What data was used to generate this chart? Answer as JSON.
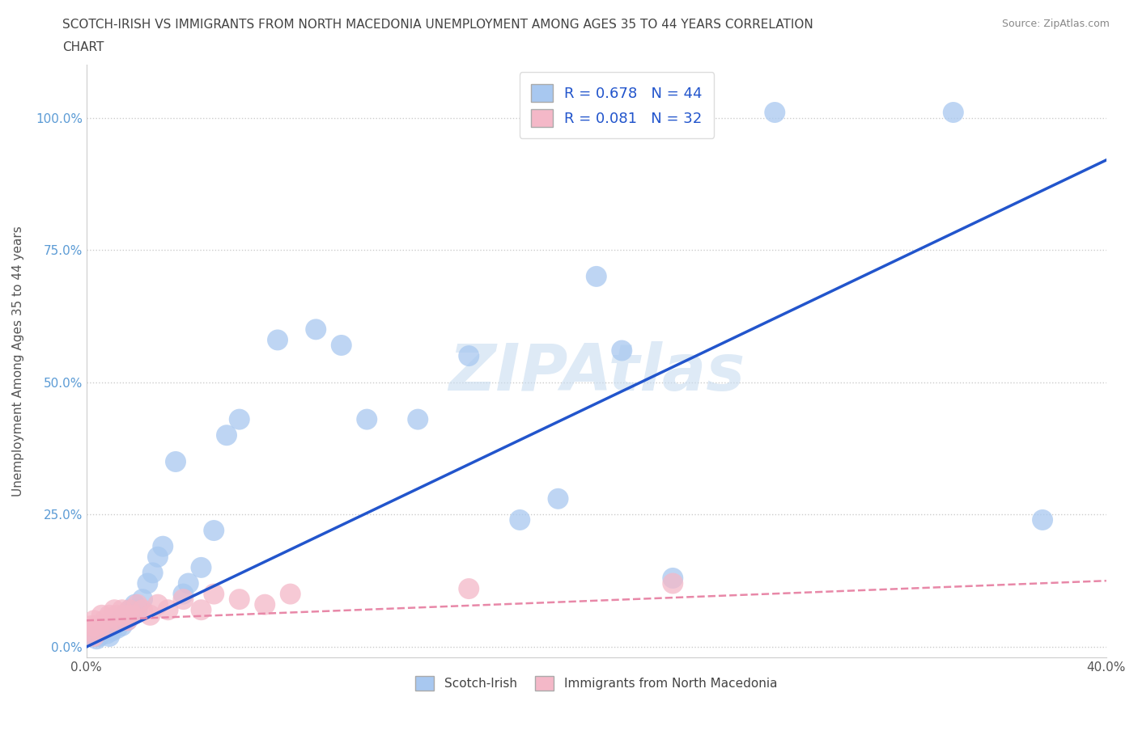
{
  "title_line1": "SCOTCH-IRISH VS IMMIGRANTS FROM NORTH MACEDONIA UNEMPLOYMENT AMONG AGES 35 TO 44 YEARS CORRELATION",
  "title_line2": "CHART",
  "source_text": "Source: ZipAtlas.com",
  "ylabel": "Unemployment Among Ages 35 to 44 years",
  "xlim": [
    0.0,
    0.4
  ],
  "ylim": [
    -0.02,
    1.1
  ],
  "blue_color": "#a8c8f0",
  "pink_color": "#f4b8c8",
  "blue_line_color": "#2255cc",
  "pink_line_color": "#e888a8",
  "R_blue": 0.678,
  "N_blue": 44,
  "R_pink": 0.081,
  "N_pink": 32,
  "watermark": "ZIPAtlas",
  "legend_blue": "Scotch-Irish",
  "legend_pink": "Immigrants from North Macedonia",
  "blue_scatter_x": [
    0.003,
    0.004,
    0.005,
    0.006,
    0.007,
    0.008,
    0.009,
    0.01,
    0.011,
    0.012,
    0.013,
    0.014,
    0.015,
    0.016,
    0.017,
    0.018,
    0.019,
    0.02,
    0.022,
    0.024,
    0.026,
    0.028,
    0.03,
    0.035,
    0.038,
    0.04,
    0.045,
    0.05,
    0.055,
    0.06,
    0.075,
    0.09,
    0.1,
    0.11,
    0.13,
    0.15,
    0.17,
    0.185,
    0.2,
    0.21,
    0.23,
    0.27,
    0.34,
    0.375
  ],
  "blue_scatter_y": [
    0.02,
    0.015,
    0.02,
    0.025,
    0.03,
    0.025,
    0.02,
    0.03,
    0.04,
    0.035,
    0.05,
    0.04,
    0.06,
    0.05,
    0.07,
    0.06,
    0.08,
    0.07,
    0.09,
    0.12,
    0.14,
    0.17,
    0.19,
    0.35,
    0.1,
    0.12,
    0.15,
    0.22,
    0.4,
    0.43,
    0.58,
    0.6,
    0.57,
    0.43,
    0.43,
    0.55,
    0.24,
    0.28,
    0.7,
    0.56,
    0.13,
    1.01,
    1.01,
    0.24
  ],
  "pink_scatter_x": [
    0.001,
    0.002,
    0.003,
    0.003,
    0.004,
    0.005,
    0.006,
    0.007,
    0.008,
    0.009,
    0.01,
    0.011,
    0.012,
    0.013,
    0.014,
    0.015,
    0.016,
    0.017,
    0.018,
    0.02,
    0.022,
    0.025,
    0.028,
    0.032,
    0.038,
    0.045,
    0.05,
    0.06,
    0.07,
    0.08,
    0.15,
    0.23
  ],
  "pink_scatter_y": [
    0.03,
    0.04,
    0.02,
    0.05,
    0.04,
    0.03,
    0.06,
    0.05,
    0.04,
    0.06,
    0.05,
    0.07,
    0.06,
    0.05,
    0.07,
    0.06,
    0.05,
    0.07,
    0.06,
    0.08,
    0.07,
    0.06,
    0.08,
    0.07,
    0.09,
    0.07,
    0.1,
    0.09,
    0.08,
    0.1,
    0.11,
    0.12
  ],
  "blue_trend_x": [
    0.0,
    0.4
  ],
  "blue_trend_y": [
    0.0,
    0.92
  ],
  "pink_trend_x": [
    0.0,
    0.4
  ],
  "pink_trend_y": [
    0.05,
    0.125
  ]
}
